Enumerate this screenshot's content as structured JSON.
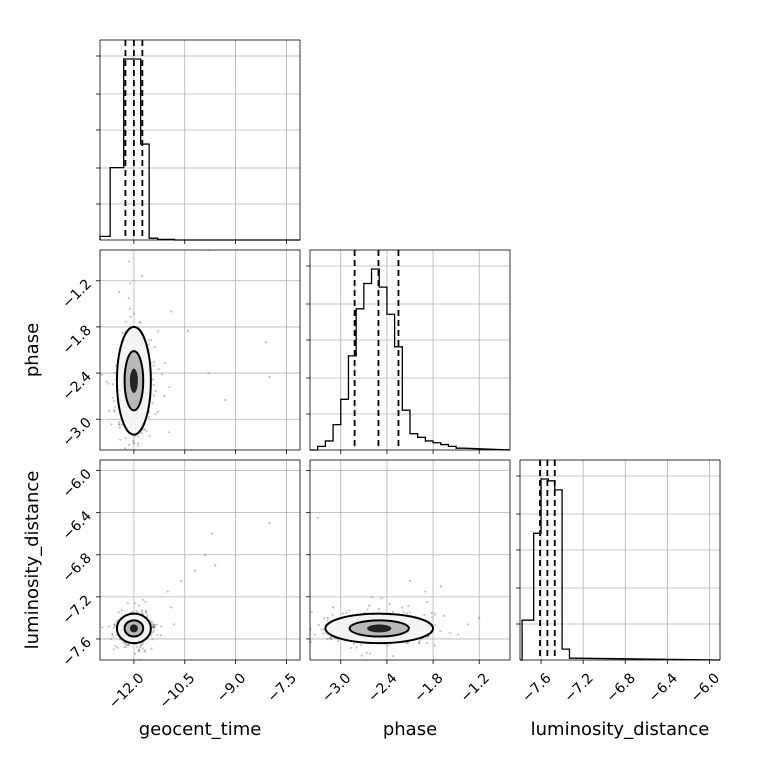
{
  "chart_data": [
    {
      "type": "histogram",
      "panel": "geocent_time (marginal)",
      "xlim": [
        -13.0,
        -7.1
      ],
      "ylim": [
        0,
        100
      ],
      "grid": true,
      "bins": [
        {
          "x0": -13.0,
          "x1": -12.7,
          "y": 2
        },
        {
          "x0": -12.7,
          "x1": -12.3,
          "y": 40
        },
        {
          "x0": -12.3,
          "x1": -12.1,
          "y": 100
        },
        {
          "x0": -12.1,
          "x1": -11.8,
          "y": 100
        },
        {
          "x0": -11.8,
          "x1": -11.55,
          "y": 53
        },
        {
          "x0": -11.55,
          "x1": -11.3,
          "y": 1
        },
        {
          "x0": -11.3,
          "x1": -10.8,
          "y": 0.3
        },
        {
          "x0": -10.8,
          "x1": -7.1,
          "y": 0
        }
      ],
      "quantiles": [
        -12.25,
        -12.0,
        -11.75
      ]
    },
    {
      "type": "histogram",
      "panel": "phase (marginal)",
      "xlim": [
        -3.4,
        -0.8
      ],
      "ylim": [
        0,
        100
      ],
      "grid": true,
      "bins": [
        {
          "x0": -3.3,
          "x1": -3.2,
          "y": 2
        },
        {
          "x0": -3.2,
          "x1": -3.1,
          "y": 5
        },
        {
          "x0": -3.1,
          "x1": -3.0,
          "y": 14
        },
        {
          "x0": -3.0,
          "x1": -2.9,
          "y": 28
        },
        {
          "x0": -2.9,
          "x1": -2.8,
          "y": 52
        },
        {
          "x0": -2.8,
          "x1": -2.7,
          "y": 78
        },
        {
          "x0": -2.7,
          "x1": -2.6,
          "y": 92
        },
        {
          "x0": -2.6,
          "x1": -2.5,
          "y": 100
        },
        {
          "x0": -2.5,
          "x1": -2.4,
          "y": 90
        },
        {
          "x0": -2.4,
          "x1": -2.3,
          "y": 75
        },
        {
          "x0": -2.3,
          "x1": -2.2,
          "y": 57
        },
        {
          "x0": -2.2,
          "x1": -2.1,
          "y": 22
        },
        {
          "x0": -2.1,
          "x1": -2.0,
          "y": 9
        },
        {
          "x0": -2.0,
          "x1": -1.9,
          "y": 7
        },
        {
          "x0": -1.9,
          "x1": -1.8,
          "y": 5
        },
        {
          "x0": -1.8,
          "x1": -1.7,
          "y": 4
        },
        {
          "x0": -1.7,
          "x1": -1.6,
          "y": 3
        },
        {
          "x0": -1.6,
          "x1": -1.5,
          "y": 2
        },
        {
          "x0": -1.5,
          "x1": -1.4,
          "y": 1
        }
      ],
      "quantiles": [
        -2.82,
        -2.51,
        -2.25
      ]
    },
    {
      "type": "histogram",
      "panel": "luminosity_distance (marginal)",
      "xlim": [
        -7.8,
        -5.9
      ],
      "ylim": [
        0,
        100
      ],
      "grid": true,
      "bins": [
        {
          "x0": -7.78,
          "x1": -7.67,
          "y": 22
        },
        {
          "x0": -7.67,
          "x1": -7.6,
          "y": 70
        },
        {
          "x0": -7.6,
          "x1": -7.53,
          "y": 100
        },
        {
          "x0": -7.53,
          "x1": -7.47,
          "y": 99
        },
        {
          "x0": -7.47,
          "x1": -7.4,
          "y": 94
        },
        {
          "x0": -7.4,
          "x1": -7.33,
          "y": 6
        },
        {
          "x0": -7.33,
          "x1": -7.26,
          "y": 1
        }
      ],
      "quantiles": [
        -7.61,
        -7.54,
        -7.47
      ]
    },
    {
      "type": "scatter",
      "panel": "phase vs geocent_time",
      "xlim": [
        -13.0,
        -7.1
      ],
      "ylim": [
        -3.4,
        -0.8
      ],
      "xticks": [
        -12.0,
        -10.5,
        -9.0,
        -7.5
      ],
      "yticks": [
        -1.2,
        -1.8,
        -2.4,
        -3.0
      ],
      "ylabel": "phase",
      "grid": true,
      "density_center": [
        -12.0,
        -2.5
      ],
      "density_spread": [
        0.25,
        0.35
      ],
      "outliers": [
        [
          -9.8,
          -0.8
        ],
        [
          -10.4,
          -1.85
        ],
        [
          -9.3,
          -2.75
        ],
        [
          -8.0,
          -2.45
        ],
        [
          -8.1,
          -2.0
        ],
        [
          -9.8,
          -2.4
        ],
        [
          -11.1,
          -2.7
        ],
        [
          -10.9,
          -1.6
        ]
      ]
    },
    {
      "type": "scatter",
      "panel": "luminosity_distance vs geocent_time",
      "xlim": [
        -13.0,
        -7.1
      ],
      "ylim": [
        -7.8,
        -5.9
      ],
      "xticks": [
        -12.0,
        -10.5,
        -9.0,
        -7.5
      ],
      "yticks": [
        -6.0,
        -6.4,
        -6.8,
        -7.2,
        -7.6
      ],
      "xlabel": "geocent_time",
      "ylabel": "luminosity_distance",
      "grid": true,
      "density_center": [
        -12.0,
        -7.5
      ],
      "density_spread": [
        0.25,
        0.07
      ],
      "outliers": [
        [
          -9.7,
          -6.6
        ],
        [
          -8.0,
          -6.5
        ],
        [
          -9.9,
          -6.8
        ],
        [
          -10.6,
          -7.05
        ],
        [
          -10.2,
          -6.95
        ],
        [
          -11.0,
          -7.15
        ],
        [
          -9.6,
          -6.9
        ],
        [
          -10.9,
          -7.3
        ]
      ]
    },
    {
      "type": "scatter",
      "panel": "luminosity_distance vs phase",
      "xlim": [
        -3.4,
        -0.8
      ],
      "ylim": [
        -7.8,
        -5.9
      ],
      "xticks": [
        -3.0,
        -2.4,
        -1.8,
        -1.2
      ],
      "xlabel": "phase",
      "grid": true,
      "density_center": [
        -2.5,
        -7.5
      ],
      "density_spread": [
        0.35,
        0.07
      ],
      "outliers": [
        [
          -3.3,
          -6.45
        ],
        [
          -1.7,
          -7.1
        ],
        [
          -2.1,
          -7.05
        ],
        [
          -1.9,
          -7.15
        ],
        [
          -2.6,
          -7.2
        ],
        [
          -1.2,
          -7.4
        ],
        [
          -3.1,
          -7.3
        ],
        [
          -2.2,
          -7.3
        ]
      ]
    },
    {
      "type": "axis",
      "panel": "luminosity_distance (marginal) x-axis",
      "xticks": [
        -7.6,
        -7.2,
        -6.8,
        -6.4,
        -6.0
      ],
      "xlabel": "luminosity_distance"
    }
  ]
}
